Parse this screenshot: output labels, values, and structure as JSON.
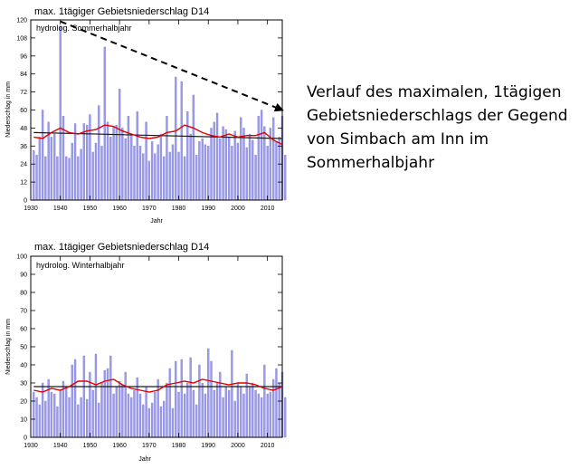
{
  "caption": "Verlauf des maximalen, 1tägigen\nGebietsniederschlags der Gegend\nvon Simbach am Inn im\nSommerhalbjahr",
  "colors": {
    "bar": "#9a9ae8",
    "bar_edge": "#7c7cd6",
    "smooth": "#e00000",
    "trend": "#1a1a1a",
    "arrow": "#000000"
  },
  "chart_data": [
    {
      "type": "bar",
      "title": "max. 1tägiger Gebietsniederschlag D14",
      "subtitle": "hydrolog. Sommerhalbjahr",
      "xlabel": "Jahr",
      "ylabel": "Niederschlag in mm",
      "xlim": [
        1930,
        2015
      ],
      "ylim": [
        0,
        120
      ],
      "yticks": [
        0,
        12,
        24,
        36,
        48,
        60,
        72,
        84,
        96,
        108,
        120
      ],
      "xticks": [
        1930,
        1940,
        1950,
        1960,
        1970,
        1980,
        1990,
        2000,
        2010
      ],
      "years_start": 1931,
      "values": [
        33,
        30,
        42,
        60,
        29,
        52,
        42,
        44,
        29,
        116,
        56,
        29,
        28,
        38,
        51,
        29,
        34,
        51,
        50,
        57,
        32,
        38,
        63,
        36,
        102,
        52,
        42,
        49,
        50,
        74,
        48,
        41,
        56,
        44,
        36,
        59,
        36,
        31,
        52,
        26,
        39,
        31,
        37,
        44,
        29,
        56,
        32,
        37,
        82,
        32,
        79,
        29,
        59,
        44,
        70,
        30,
        39,
        41,
        37,
        36,
        48,
        52,
        58,
        41,
        49,
        47,
        42,
        36,
        46,
        38,
        55,
        48,
        35,
        44,
        40,
        30,
        56,
        60,
        49,
        36,
        48,
        55,
        39,
        42,
        56,
        30
      ],
      "trend": [
        [
          1931,
          45
        ],
        [
          2015,
          41
        ]
      ],
      "smooth": [
        [
          1931,
          42
        ],
        [
          1934,
          41
        ],
        [
          1937,
          45
        ],
        [
          1940,
          48
        ],
        [
          1943,
          45
        ],
        [
          1946,
          44
        ],
        [
          1949,
          46
        ],
        [
          1952,
          47
        ],
        [
          1955,
          50
        ],
        [
          1958,
          49
        ],
        [
          1961,
          46
        ],
        [
          1964,
          44
        ],
        [
          1967,
          42
        ],
        [
          1970,
          41
        ],
        [
          1973,
          42
        ],
        [
          1976,
          45
        ],
        [
          1979,
          46
        ],
        [
          1982,
          50
        ],
        [
          1985,
          48
        ],
        [
          1988,
          45
        ],
        [
          1991,
          43
        ],
        [
          1994,
          42
        ],
        [
          1997,
          44
        ],
        [
          2000,
          42
        ],
        [
          2003,
          43
        ],
        [
          2006,
          43
        ],
        [
          2009,
          45
        ],
        [
          2012,
          40
        ],
        [
          2015,
          37
        ]
      ],
      "arrow": {
        "from": [
          1940,
          119
        ],
        "to": [
          2015,
          60
        ]
      },
      "grid": false,
      "legend": "none"
    },
    {
      "type": "bar",
      "title": "max. 1tägiger Gebietsniederschlag D14",
      "subtitle": "hydrolog. Winterhalbjahr",
      "xlabel": "Jahr",
      "ylabel": "Niederschlag in mm",
      "xlim": [
        1930,
        2015
      ],
      "ylim": [
        0,
        100
      ],
      "yticks": [
        0,
        10,
        20,
        30,
        40,
        50,
        60,
        70,
        80,
        90,
        100
      ],
      "xticks": [
        1930,
        1940,
        1950,
        1960,
        1970,
        1980,
        1990,
        2000,
        2010
      ],
      "years_start": 1931,
      "values": [
        25,
        22,
        18,
        30,
        20,
        32,
        25,
        24,
        17,
        26,
        31,
        28,
        22,
        40,
        43,
        18,
        22,
        45,
        21,
        36,
        26,
        46,
        19,
        30,
        37,
        38,
        45,
        24,
        28,
        31,
        29,
        36,
        24,
        22,
        26,
        33,
        24,
        18,
        28,
        16,
        19,
        25,
        32,
        17,
        20,
        30,
        38,
        16,
        42,
        25,
        43,
        24,
        30,
        44,
        26,
        18,
        40,
        30,
        24,
        49,
        42,
        26,
        30,
        36,
        22,
        28,
        26,
        48,
        20,
        30,
        28,
        24,
        35,
        28,
        30,
        26,
        24,
        22,
        40,
        24,
        25,
        32,
        38,
        30,
        36,
        22
      ],
      "trend": [
        [
          1931,
          28
        ],
        [
          2015,
          28
        ]
      ],
      "smooth": [
        [
          1931,
          26
        ],
        [
          1934,
          25
        ],
        [
          1937,
          27
        ],
        [
          1940,
          26
        ],
        [
          1943,
          28
        ],
        [
          1946,
          31
        ],
        [
          1949,
          31
        ],
        [
          1952,
          29
        ],
        [
          1955,
          31
        ],
        [
          1958,
          32
        ],
        [
          1961,
          29
        ],
        [
          1964,
          27
        ],
        [
          1967,
          26
        ],
        [
          1970,
          25
        ],
        [
          1973,
          26
        ],
        [
          1976,
          29
        ],
        [
          1979,
          30
        ],
        [
          1982,
          31
        ],
        [
          1985,
          30
        ],
        [
          1988,
          32
        ],
        [
          1991,
          31
        ],
        [
          1994,
          30
        ],
        [
          1997,
          29
        ],
        [
          2000,
          30
        ],
        [
          2003,
          30
        ],
        [
          2006,
          29
        ],
        [
          2009,
          27
        ],
        [
          2012,
          26
        ],
        [
          2015,
          28
        ]
      ],
      "grid": false,
      "legend": "none"
    }
  ]
}
